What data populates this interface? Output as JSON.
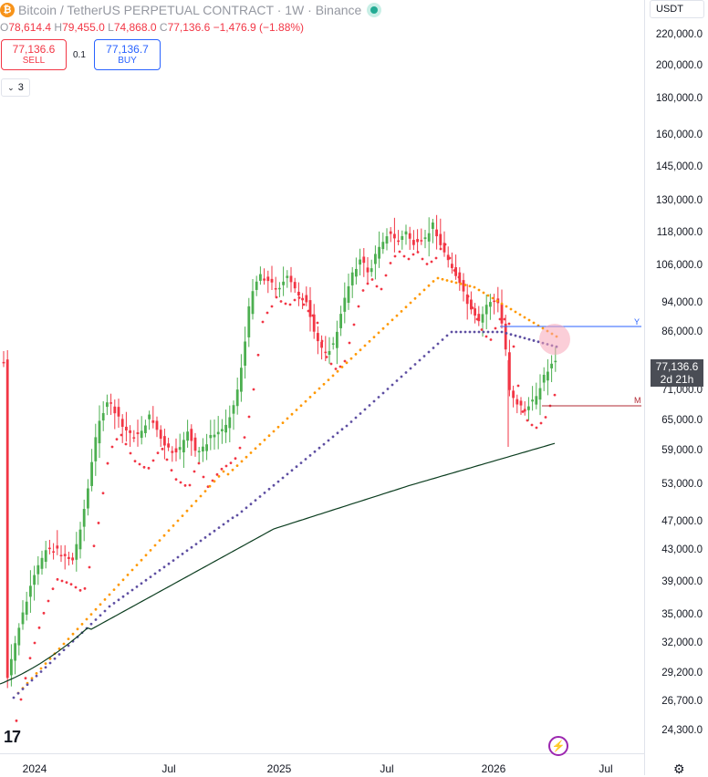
{
  "header": {
    "coin_glyph": "₿",
    "title": "Bitcoin / TetherUS PERPETUAL CONTRACT · 1W · Binance",
    "live_status_color": "#22ab94"
  },
  "ohlc": {
    "o_label": "O",
    "o": "78,614.4",
    "h_label": "H",
    "h": "79,455.0",
    "l_label": "L",
    "l": "74,868.0",
    "c_label": "C",
    "c": "77,136.6",
    "change": "−1,476.9 (−1.88%)"
  },
  "trade": {
    "sell_price": "77,136.6",
    "sell_label": "SELL",
    "spread": "0.1",
    "buy_price": "77,136.7",
    "buy_label": "BUY"
  },
  "indicators_toggle": {
    "count": "3",
    "chevron": "⌄"
  },
  "currency": "USDT",
  "price_axis": [
    "220,000.0",
    "200,000.0",
    "180,000.0",
    "160,000.0",
    "145,000.0",
    "130,000.0",
    "118,000.0",
    "106,000.0",
    "94,000.0",
    "86,000.0",
    "71,000.0",
    "65,000.0",
    "59,000.0",
    "53,000.0",
    "47,000.0",
    "43,000.0",
    "39,000.0",
    "35,000.0",
    "32,000.0",
    "29,200.0",
    "26,700.0",
    "24,300.0"
  ],
  "last_price": {
    "price": "77,136.6",
    "countdown": "2d 21h"
  },
  "time_axis": [
    "2024",
    "Jul",
    "2025",
    "Jul",
    "2026",
    "Jul"
  ],
  "line_tags": {
    "y": "Y",
    "m": "M"
  },
  "logo": "17",
  "bolt_glyph": "⚡",
  "settings_glyph": "⚙",
  "colors": {
    "up": "#26a69a",
    "up_body": "#4caf50",
    "down": "#f23645",
    "ma_red": "#f23645",
    "ma_orange": "#ff9800",
    "ma_purple": "#5e4fa2",
    "ma_long": "#0b3d1f",
    "y_line": "#2962ff",
    "m_line": "#b22833",
    "highlight": "#f8a5b8"
  }
}
